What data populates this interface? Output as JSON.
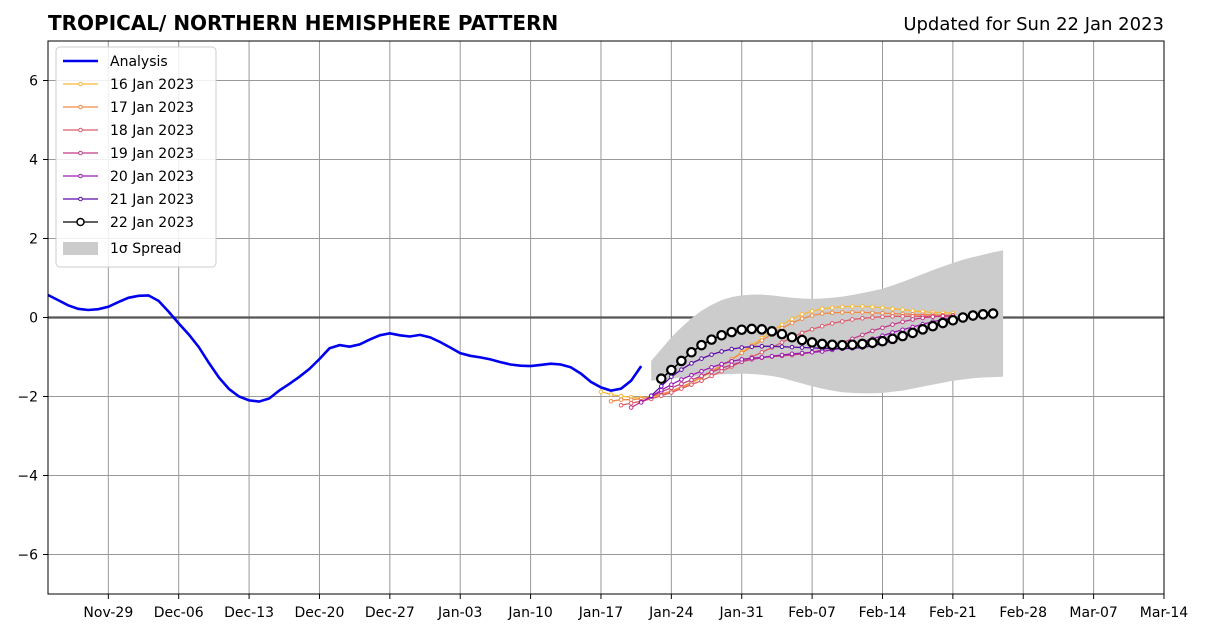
{
  "chart_data": {
    "type": "line",
    "title": "TROPICAL/ NORTHERN HEMISPHERE PATTERN",
    "subtitle": "Updated for Sun 22 Jan 2023",
    "xlabel": "",
    "ylabel": "",
    "x_range": [
      "2022-11-23",
      "2023-03-14"
    ],
    "ylim": [
      -7,
      7
    ],
    "yticks": [
      -6,
      -4,
      -2,
      0,
      2,
      4,
      6
    ],
    "ytick_labels": [
      "−6",
      "−4",
      "−2",
      "0",
      "2",
      "4",
      "6"
    ],
    "xticks": [
      "2022-11-29",
      "2022-12-06",
      "2022-12-13",
      "2022-12-20",
      "2022-12-27",
      "2023-01-03",
      "2023-01-10",
      "2023-01-17",
      "2023-01-24",
      "2023-01-31",
      "2023-02-07",
      "2023-02-14",
      "2023-02-21",
      "2023-02-28",
      "2023-03-07",
      "2023-03-14"
    ],
    "xtick_labels": [
      "Nov-29",
      "Dec-06",
      "Dec-13",
      "Dec-20",
      "Dec-27",
      "Jan-03",
      "Jan-10",
      "Jan-17",
      "Jan-24",
      "Jan-31",
      "Feb-07",
      "Feb-14",
      "Feb-21",
      "Feb-28",
      "Mar-07",
      "Mar-14"
    ],
    "grid": true,
    "legend_position": "top-left",
    "zero_line": true,
    "series": [
      {
        "name": "Analysis",
        "color": "#0000ee",
        "style": "thick",
        "start": "2022-11-23",
        "values": [
          0.57,
          0.44,
          0.31,
          0.22,
          0.19,
          0.21,
          0.27,
          0.39,
          0.5,
          0.55,
          0.56,
          0.42,
          0.15,
          -0.15,
          -0.43,
          -0.75,
          -1.15,
          -1.52,
          -1.81,
          -2.0,
          -2.1,
          -2.13,
          -2.05,
          -1.85,
          -1.68,
          -1.5,
          -1.3,
          -1.05,
          -0.78,
          -0.7,
          -0.74,
          -0.68,
          -0.56,
          -0.45,
          -0.4,
          -0.45,
          -0.48,
          -0.44,
          -0.5,
          -0.62,
          -0.76,
          -0.9,
          -0.97,
          -1.01,
          -1.06,
          -1.13,
          -1.19,
          -1.22,
          -1.23,
          -1.2,
          -1.17,
          -1.19,
          -1.26,
          -1.42,
          -1.63,
          -1.77,
          -1.85,
          -1.8,
          -1.6,
          -1.23
        ]
      },
      {
        "name": "16 Jan 2023",
        "color": "#f7b93b",
        "style": "small-marker",
        "start": "2023-01-17",
        "values": [
          -1.88,
          -1.95,
          -1.99,
          -2.02,
          -2.04,
          -2.02,
          -1.96,
          -1.88,
          -1.78,
          -1.66,
          -1.52,
          -1.38,
          -1.22,
          -1.06,
          -0.88,
          -0.7,
          -0.52,
          -0.34,
          -0.18,
          -0.04,
          0.08,
          0.16,
          0.22,
          0.25,
          0.27,
          0.28,
          0.28,
          0.27,
          0.25,
          0.22,
          0.2,
          0.17,
          0.15,
          0.13,
          0.12,
          0.11
        ]
      },
      {
        "name": "17 Jan 2023",
        "color": "#f08a47",
        "style": "small-marker",
        "start": "2023-01-18",
        "values": [
          -2.12,
          -2.08,
          -2.08,
          -2.06,
          -2.0,
          -1.94,
          -1.86,
          -1.76,
          -1.64,
          -1.5,
          -1.36,
          -1.21,
          -1.06,
          -0.9,
          -0.74,
          -0.58,
          -0.42,
          -0.27,
          -0.14,
          -0.03,
          0.05,
          0.1,
          0.12,
          0.13,
          0.13,
          0.13,
          0.12,
          0.11,
          0.1,
          0.09,
          0.08,
          0.07,
          0.07,
          0.06,
          0.06
        ]
      },
      {
        "name": "18 Jan 2023",
        "color": "#dc5c6c",
        "style": "small-marker",
        "start": "2023-01-19",
        "values": [
          -2.22,
          -2.17,
          -2.12,
          -2.06,
          -1.98,
          -1.9,
          -1.8,
          -1.7,
          -1.6,
          -1.48,
          -1.36,
          -1.24,
          -1.12,
          -1.0,
          -0.88,
          -0.76,
          -0.63,
          -0.5,
          -0.39,
          -0.3,
          -0.22,
          -0.15,
          -0.1,
          -0.05,
          -0.02,
          0.0,
          0.02,
          0.03,
          0.03,
          0.03,
          0.03,
          0.03,
          0.02,
          0.02
        ]
      },
      {
        "name": "19 Jan 2023",
        "color": "#c23a86",
        "style": "small-marker",
        "start": "2023-01-20",
        "values": [
          -2.28,
          -2.14,
          -2.0,
          -1.88,
          -1.78,
          -1.68,
          -1.58,
          -1.48,
          -1.38,
          -1.28,
          -1.2,
          -1.12,
          -1.06,
          -1.02,
          -0.99,
          -0.97,
          -0.95,
          -0.92,
          -0.88,
          -0.82,
          -0.74,
          -0.64,
          -0.54,
          -0.44,
          -0.34,
          -0.26,
          -0.18,
          -0.11,
          -0.05,
          -0.01,
          0.02,
          0.04,
          0.05
        ]
      },
      {
        "name": "20 Jan 2023",
        "color": "#9a1ab2",
        "style": "small-marker",
        "start": "2023-01-21",
        "values": [
          -2.15,
          -2.0,
          -1.84,
          -1.7,
          -1.57,
          -1.46,
          -1.36,
          -1.26,
          -1.18,
          -1.11,
          -1.06,
          -1.03,
          -1.01,
          -0.98,
          -0.95,
          -0.92,
          -0.9,
          -0.88,
          -0.86,
          -0.82,
          -0.77,
          -0.7,
          -0.62,
          -0.54,
          -0.46,
          -0.38,
          -0.31,
          -0.24,
          -0.17,
          -0.11,
          -0.05,
          -0.01
        ]
      },
      {
        "name": "21 Jan 2023",
        "color": "#5b0aa6",
        "style": "small-marker",
        "start": "2023-01-22",
        "values": [
          -1.98,
          -1.74,
          -1.5,
          -1.32,
          -1.16,
          -1.04,
          -0.94,
          -0.86,
          -0.8,
          -0.76,
          -0.74,
          -0.73,
          -0.73,
          -0.74,
          -0.75,
          -0.76,
          -0.77,
          -0.78,
          -0.79,
          -0.79,
          -0.78,
          -0.76,
          -0.72,
          -0.66,
          -0.58,
          -0.5,
          -0.4,
          -0.3,
          -0.19,
          -0.09,
          -0.01
        ]
      },
      {
        "name": "22 Jan 2023",
        "color": "#000000",
        "style": "open-circle",
        "start": "2023-01-23",
        "values": [
          -1.55,
          -1.33,
          -1.1,
          -0.88,
          -0.7,
          -0.56,
          -0.45,
          -0.37,
          -0.31,
          -0.29,
          -0.3,
          -0.35,
          -0.42,
          -0.5,
          -0.57,
          -0.63,
          -0.67,
          -0.69,
          -0.7,
          -0.69,
          -0.67,
          -0.64,
          -0.6,
          -0.54,
          -0.47,
          -0.39,
          -0.3,
          -0.22,
          -0.14,
          -0.07,
          0.0,
          0.05,
          0.08,
          0.1
        ]
      }
    ],
    "spread": {
      "name": "1σ Spread",
      "color": "#cccccc",
      "start": "2023-01-22",
      "upper": [
        -1.1,
        -0.8,
        -0.5,
        -0.25,
        -0.02,
        0.17,
        0.32,
        0.44,
        0.52,
        0.56,
        0.58,
        0.58,
        0.56,
        0.53,
        0.5,
        0.48,
        0.47,
        0.48,
        0.5,
        0.53,
        0.57,
        0.62,
        0.67,
        0.73,
        0.81,
        0.9,
        1.0,
        1.1,
        1.2,
        1.29,
        1.38,
        1.46,
        1.53,
        1.59,
        1.65,
        1.7
      ],
      "lower": [
        -1.6,
        -1.57,
        -1.55,
        -1.52,
        -1.5,
        -1.48,
        -1.46,
        -1.44,
        -1.43,
        -1.42,
        -1.43,
        -1.45,
        -1.48,
        -1.53,
        -1.6,
        -1.67,
        -1.74,
        -1.8,
        -1.85,
        -1.89,
        -1.91,
        -1.92,
        -1.92,
        -1.91,
        -1.88,
        -1.85,
        -1.8,
        -1.75,
        -1.7,
        -1.65,
        -1.6,
        -1.57,
        -1.54,
        -1.52,
        -1.51,
        -1.5
      ]
    }
  }
}
